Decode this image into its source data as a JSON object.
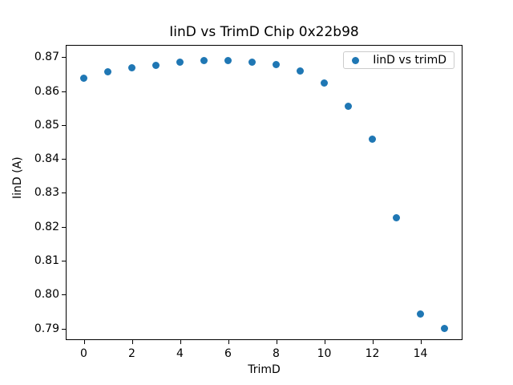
{
  "chart_data": {
    "type": "scatter",
    "title": "IinD vs TrimD Chip 0x22b98",
    "xlabel": "TrimD",
    "ylabel": "IinD (A)",
    "series": [
      {
        "name": "IinD vs trimD",
        "color": "#1f77b4",
        "x": [
          0,
          1,
          2,
          3,
          4,
          5,
          6,
          7,
          8,
          9,
          10,
          11,
          12,
          13,
          14,
          15
        ],
        "y": [
          0.8638,
          0.8656,
          0.8668,
          0.8676,
          0.8684,
          0.8689,
          0.8691,
          0.8686,
          0.8677,
          0.8659,
          0.8624,
          0.8556,
          0.8459,
          0.8226,
          0.7944,
          0.79
        ]
      }
    ],
    "xlim": [
      -0.75,
      15.75
    ],
    "ylim": [
      0.7866,
      0.8736
    ],
    "xticks": [
      0,
      2,
      4,
      6,
      8,
      10,
      12,
      14
    ],
    "yticks": [
      0.79,
      0.8,
      0.81,
      0.82,
      0.83,
      0.84,
      0.85,
      0.86,
      0.87
    ],
    "ytick_decimals": 2,
    "grid": false,
    "legend_position": "upper right",
    "legend": [
      {
        "label": "IinD vs trimD",
        "marker": "dot",
        "color": "#1f77b4"
      }
    ],
    "colors": {
      "marker": "#1f77b4",
      "spine": "#000000",
      "legend_border": "#cccccc",
      "background": "#ffffff"
    }
  }
}
